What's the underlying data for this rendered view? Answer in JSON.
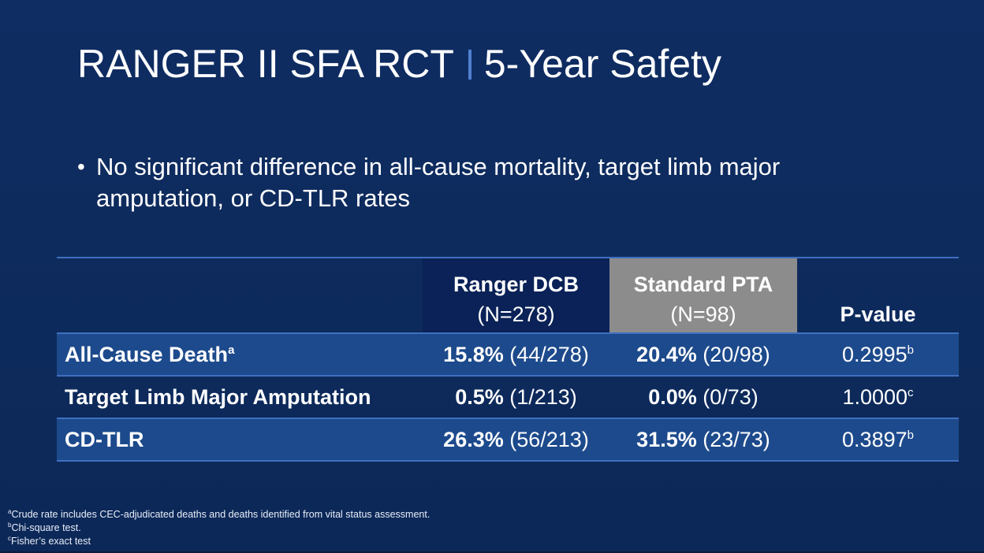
{
  "title": {
    "main": "RANGER II SFA RCT",
    "sub": "5-Year Safety"
  },
  "bullet": "No significant difference in all-cause mortality, target limb major amputation, or CD-TLR rates",
  "table": {
    "headers": {
      "dcb_name": "Ranger DCB",
      "dcb_n": "(N=278)",
      "pta_name": "Standard PTA",
      "pta_n": "(N=98)",
      "pvalue": "P-value"
    },
    "rows": [
      {
        "label": "All-Cause Death",
        "label_sup": "a",
        "dcb_rate": "15.8%",
        "dcb_count": "(44/278)",
        "pta_rate": "20.4%",
        "pta_count": "(20/98)",
        "pvalue": "0.2995",
        "pvalue_sup": "b"
      },
      {
        "label": "Target Limb Major Amputation",
        "label_sup": "",
        "dcb_rate": "0.5%",
        "dcb_count": "(1/213)",
        "pta_rate": "0.0%",
        "pta_count": "(0/73)",
        "pvalue": "1.0000",
        "pvalue_sup": "c"
      },
      {
        "label": "CD-TLR",
        "label_sup": "",
        "dcb_rate": "26.3%",
        "dcb_count": "(56/213)",
        "pta_rate": "31.5%",
        "pta_count": "(23/73)",
        "pvalue": "0.3897",
        "pvalue_sup": "b"
      }
    ]
  },
  "footnotes": [
    {
      "mark": "a",
      "text": "Crude rate includes CEC-adjudicated deaths and deaths identified from vital status assessment."
    },
    {
      "mark": "b",
      "text": "Chi-square test."
    },
    {
      "mark": "c",
      "text": "Fisher’s exact test"
    }
  ],
  "colors": {
    "background": "#0d2a5c",
    "dcb_header": "#0a2257",
    "pta_header": "#8c8c8c",
    "row_shade": "#1d4a8c",
    "rule": "#3f6fc0"
  }
}
